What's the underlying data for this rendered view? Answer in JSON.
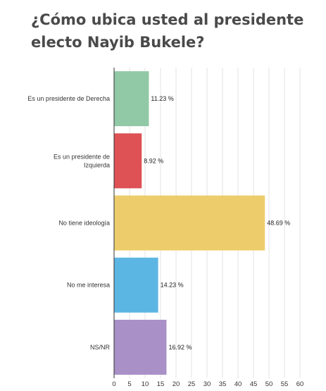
{
  "chart_data": {
    "type": "bar",
    "orientation": "horizontal",
    "title": "¿Cómo ubica usted al presidente electo Nayib Bukele?",
    "categories": [
      "Es un presidente de Derecha",
      "Es un presidente de Izquierda",
      "No tiene ideología",
      "No me interesa",
      "NS/NR"
    ],
    "values": [
      11.23,
      8.92,
      48.69,
      14.23,
      16.92
    ],
    "value_labels": [
      "11.23 %",
      "8.92 %",
      "48.69 %",
      "14.23 %",
      "16.92 %"
    ],
    "colors": [
      "#91c9a6",
      "#de5155",
      "#edcd6b",
      "#5cb6e3",
      "#a990c7"
    ],
    "xlim": [
      0,
      60
    ],
    "xticks": [
      0,
      5,
      10,
      15,
      20,
      25,
      30,
      35,
      40,
      45,
      50,
      55,
      60
    ],
    "grid": true,
    "legend": false
  }
}
